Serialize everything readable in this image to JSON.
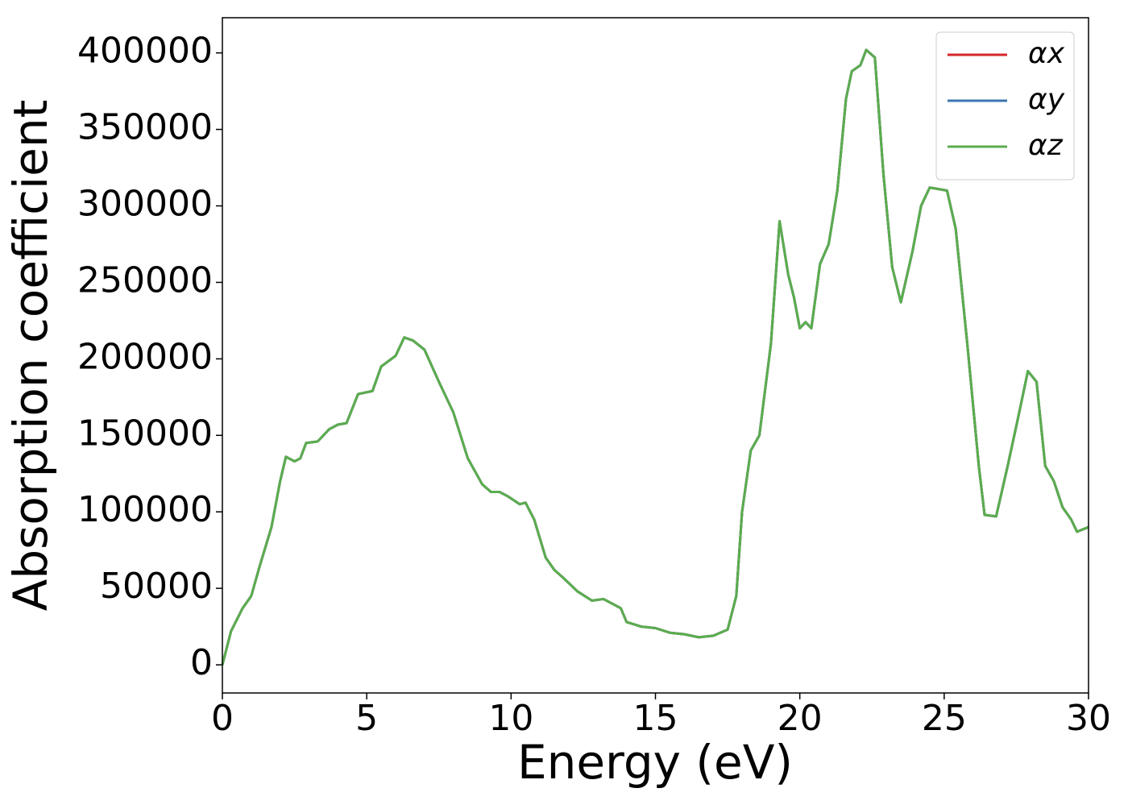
{
  "chart_data": {
    "type": "line",
    "xlabel": "Energy (eV)",
    "ylabel": "Absorption coefficient",
    "x": [
      0,
      0.3,
      0.7,
      1.0,
      1.3,
      1.7,
      2.0,
      2.2,
      2.5,
      2.7,
      2.9,
      3.3,
      3.7,
      4.0,
      4.3,
      4.7,
      5.2,
      5.5,
      6.0,
      6.3,
      6.6,
      7.0,
      7.5,
      8.0,
      8.5,
      9.0,
      9.3,
      9.6,
      9.9,
      10.3,
      10.5,
      10.8,
      11.2,
      11.5,
      11.8,
      12.3,
      12.8,
      13.2,
      13.8,
      14.0,
      14.5,
      15.0,
      15.5,
      16.0,
      16.5,
      17.0,
      17.5,
      17.8,
      18.0,
      18.3,
      18.6,
      19.0,
      19.3,
      19.6,
      19.8,
      20.0,
      20.2,
      20.4,
      20.7,
      21.0,
      21.3,
      21.6,
      21.8,
      22.1,
      22.3,
      22.6,
      22.9,
      23.2,
      23.5,
      23.9,
      24.2,
      24.5,
      24.8,
      25.1,
      25.4,
      25.8,
      26.2,
      26.4,
      26.8,
      27.2,
      27.6,
      27.9,
      28.2,
      28.5,
      28.8,
      29.1,
      29.4,
      29.6,
      30.0
    ],
    "series": [
      {
        "name": "αx",
        "color": "#d62728",
        "values": [
          0,
          22000,
          37000,
          45000,
          65000,
          90000,
          120000,
          136000,
          133000,
          135000,
          145000,
          146000,
          154000,
          157000,
          158000,
          177000,
          179000,
          195000,
          202000,
          214000,
          212000,
          206000,
          185000,
          165000,
          135000,
          118000,
          113000,
          113000,
          110000,
          105000,
          106000,
          95000,
          70000,
          62000,
          57000,
          48000,
          42000,
          43000,
          37000,
          28000,
          25000,
          24000,
          21000,
          20000,
          18000,
          19000,
          23000,
          45000,
          100000,
          140000,
          150000,
          210000,
          290000,
          255000,
          240000,
          220000,
          224000,
          220000,
          262000,
          275000,
          310000,
          370000,
          388000,
          392000,
          402000,
          397000,
          320000,
          260000,
          237000,
          270000,
          300000,
          312000,
          311000,
          310000,
          285000,
          210000,
          130000,
          98000,
          97000,
          130000,
          165000,
          192000,
          185000,
          130000,
          120000,
          103000,
          95000,
          87000,
          90000
        ]
      },
      {
        "name": "αy",
        "color": "#3b75af",
        "values": [
          0,
          22000,
          37000,
          45000,
          65000,
          90000,
          120000,
          136000,
          133000,
          135000,
          145000,
          146000,
          154000,
          157000,
          158000,
          177000,
          179000,
          195000,
          202000,
          214000,
          212000,
          206000,
          185000,
          165000,
          135000,
          118000,
          113000,
          113000,
          110000,
          105000,
          106000,
          95000,
          70000,
          62000,
          57000,
          48000,
          42000,
          43000,
          37000,
          28000,
          25000,
          24000,
          21000,
          20000,
          18000,
          19000,
          23000,
          45000,
          100000,
          140000,
          150000,
          210000,
          290000,
          255000,
          240000,
          220000,
          224000,
          220000,
          262000,
          275000,
          310000,
          370000,
          388000,
          392000,
          402000,
          397000,
          320000,
          260000,
          237000,
          270000,
          300000,
          312000,
          311000,
          310000,
          285000,
          210000,
          130000,
          98000,
          97000,
          130000,
          165000,
          192000,
          185000,
          130000,
          120000,
          103000,
          95000,
          87000,
          90000
        ]
      },
      {
        "name": "αz",
        "color": "#5aad4e",
        "values": [
          0,
          22000,
          37000,
          45000,
          65000,
          90000,
          120000,
          136000,
          133000,
          135000,
          145000,
          146000,
          154000,
          157000,
          158000,
          177000,
          179000,
          195000,
          202000,
          214000,
          212000,
          206000,
          185000,
          165000,
          135000,
          118000,
          113000,
          113000,
          110000,
          105000,
          106000,
          95000,
          70000,
          62000,
          57000,
          48000,
          42000,
          43000,
          37000,
          28000,
          25000,
          24000,
          21000,
          20000,
          18000,
          19000,
          23000,
          45000,
          100000,
          140000,
          150000,
          210000,
          290000,
          255000,
          240000,
          220000,
          224000,
          220000,
          262000,
          275000,
          310000,
          370000,
          388000,
          392000,
          402000,
          397000,
          320000,
          260000,
          237000,
          270000,
          300000,
          312000,
          311000,
          310000,
          285000,
          210000,
          130000,
          98000,
          97000,
          130000,
          165000,
          192000,
          185000,
          130000,
          120000,
          103000,
          95000,
          87000,
          90000
        ]
      }
    ],
    "xlim": [
      0,
      30
    ],
    "xticks": [
      0,
      5,
      10,
      15,
      20,
      25,
      30
    ],
    "ylim": [
      -18400,
      423000
    ],
    "yticks": [
      0,
      50000,
      100000,
      150000,
      200000,
      250000,
      300000,
      350000,
      400000
    ],
    "legend": "upper right"
  }
}
